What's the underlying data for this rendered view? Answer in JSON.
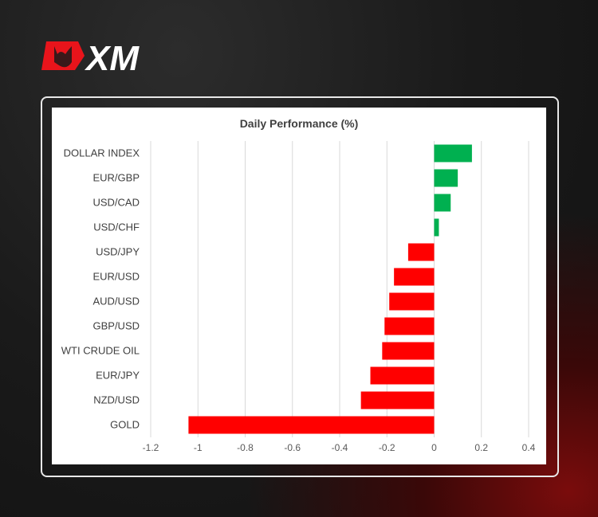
{
  "brand": {
    "logo_text": "XM",
    "accent": "#e8141b"
  },
  "chart_data": {
    "type": "bar",
    "orientation": "horizontal",
    "title": "Daily Performance (%)",
    "categories": [
      "DOLLAR INDEX",
      "EUR/GBP",
      "USD/CAD",
      "USD/CHF",
      "USD/JPY",
      "EUR/USD",
      "AUD/USD",
      "GBP/USD",
      "WTI CRUDE OIL",
      "EUR/JPY",
      "NZD/USD",
      "GOLD"
    ],
    "values": [
      0.16,
      0.1,
      0.07,
      0.02,
      -0.11,
      -0.17,
      -0.19,
      -0.21,
      -0.22,
      -0.27,
      -0.31,
      -1.04
    ],
    "xlim": [
      -1.2,
      0.4
    ],
    "xticks": [
      "-1.2",
      "-1",
      "-0.8",
      "-0.6",
      "-0.4",
      "-0.2",
      "0",
      "0.2",
      "0.4"
    ],
    "grid": true,
    "colors": {
      "positive": "#00b050",
      "negative": "#ff0000"
    }
  }
}
